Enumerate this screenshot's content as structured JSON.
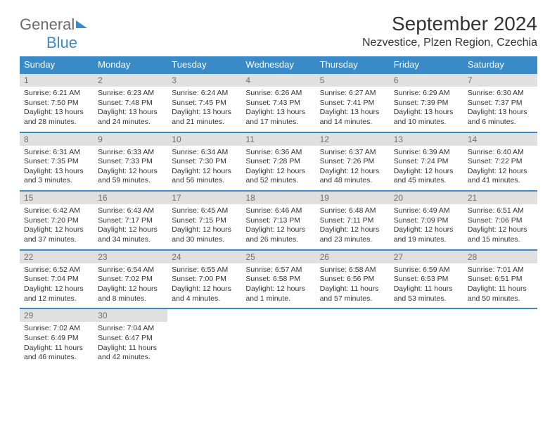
{
  "logo": {
    "part1": "General",
    "part2": "Blue"
  },
  "title": "September 2024",
  "location": "Nezvestice, Plzen Region, Czechia",
  "colors": {
    "accent": "#3a8ac8",
    "header_text": "#ffffff",
    "daynum_bg": "#e0e0e0",
    "daynum_text": "#707070",
    "body_text": "#333333",
    "logo_gray": "#6b6b6b"
  },
  "dow": [
    "Sunday",
    "Monday",
    "Tuesday",
    "Wednesday",
    "Thursday",
    "Friday",
    "Saturday"
  ],
  "weeks": [
    [
      {
        "n": "1",
        "sr": "Sunrise: 6:21 AM",
        "ss": "Sunset: 7:50 PM",
        "dl": "Daylight: 13 hours and 28 minutes."
      },
      {
        "n": "2",
        "sr": "Sunrise: 6:23 AM",
        "ss": "Sunset: 7:48 PM",
        "dl": "Daylight: 13 hours and 24 minutes."
      },
      {
        "n": "3",
        "sr": "Sunrise: 6:24 AM",
        "ss": "Sunset: 7:45 PM",
        "dl": "Daylight: 13 hours and 21 minutes."
      },
      {
        "n": "4",
        "sr": "Sunrise: 6:26 AM",
        "ss": "Sunset: 7:43 PM",
        "dl": "Daylight: 13 hours and 17 minutes."
      },
      {
        "n": "5",
        "sr": "Sunrise: 6:27 AM",
        "ss": "Sunset: 7:41 PM",
        "dl": "Daylight: 13 hours and 14 minutes."
      },
      {
        "n": "6",
        "sr": "Sunrise: 6:29 AM",
        "ss": "Sunset: 7:39 PM",
        "dl": "Daylight: 13 hours and 10 minutes."
      },
      {
        "n": "7",
        "sr": "Sunrise: 6:30 AM",
        "ss": "Sunset: 7:37 PM",
        "dl": "Daylight: 13 hours and 6 minutes."
      }
    ],
    [
      {
        "n": "8",
        "sr": "Sunrise: 6:31 AM",
        "ss": "Sunset: 7:35 PM",
        "dl": "Daylight: 13 hours and 3 minutes."
      },
      {
        "n": "9",
        "sr": "Sunrise: 6:33 AM",
        "ss": "Sunset: 7:33 PM",
        "dl": "Daylight: 12 hours and 59 minutes."
      },
      {
        "n": "10",
        "sr": "Sunrise: 6:34 AM",
        "ss": "Sunset: 7:30 PM",
        "dl": "Daylight: 12 hours and 56 minutes."
      },
      {
        "n": "11",
        "sr": "Sunrise: 6:36 AM",
        "ss": "Sunset: 7:28 PM",
        "dl": "Daylight: 12 hours and 52 minutes."
      },
      {
        "n": "12",
        "sr": "Sunrise: 6:37 AM",
        "ss": "Sunset: 7:26 PM",
        "dl": "Daylight: 12 hours and 48 minutes."
      },
      {
        "n": "13",
        "sr": "Sunrise: 6:39 AM",
        "ss": "Sunset: 7:24 PM",
        "dl": "Daylight: 12 hours and 45 minutes."
      },
      {
        "n": "14",
        "sr": "Sunrise: 6:40 AM",
        "ss": "Sunset: 7:22 PM",
        "dl": "Daylight: 12 hours and 41 minutes."
      }
    ],
    [
      {
        "n": "15",
        "sr": "Sunrise: 6:42 AM",
        "ss": "Sunset: 7:20 PM",
        "dl": "Daylight: 12 hours and 37 minutes."
      },
      {
        "n": "16",
        "sr": "Sunrise: 6:43 AM",
        "ss": "Sunset: 7:17 PM",
        "dl": "Daylight: 12 hours and 34 minutes."
      },
      {
        "n": "17",
        "sr": "Sunrise: 6:45 AM",
        "ss": "Sunset: 7:15 PM",
        "dl": "Daylight: 12 hours and 30 minutes."
      },
      {
        "n": "18",
        "sr": "Sunrise: 6:46 AM",
        "ss": "Sunset: 7:13 PM",
        "dl": "Daylight: 12 hours and 26 minutes."
      },
      {
        "n": "19",
        "sr": "Sunrise: 6:48 AM",
        "ss": "Sunset: 7:11 PM",
        "dl": "Daylight: 12 hours and 23 minutes."
      },
      {
        "n": "20",
        "sr": "Sunrise: 6:49 AM",
        "ss": "Sunset: 7:09 PM",
        "dl": "Daylight: 12 hours and 19 minutes."
      },
      {
        "n": "21",
        "sr": "Sunrise: 6:51 AM",
        "ss": "Sunset: 7:06 PM",
        "dl": "Daylight: 12 hours and 15 minutes."
      }
    ],
    [
      {
        "n": "22",
        "sr": "Sunrise: 6:52 AM",
        "ss": "Sunset: 7:04 PM",
        "dl": "Daylight: 12 hours and 12 minutes."
      },
      {
        "n": "23",
        "sr": "Sunrise: 6:54 AM",
        "ss": "Sunset: 7:02 PM",
        "dl": "Daylight: 12 hours and 8 minutes."
      },
      {
        "n": "24",
        "sr": "Sunrise: 6:55 AM",
        "ss": "Sunset: 7:00 PM",
        "dl": "Daylight: 12 hours and 4 minutes."
      },
      {
        "n": "25",
        "sr": "Sunrise: 6:57 AM",
        "ss": "Sunset: 6:58 PM",
        "dl": "Daylight: 12 hours and 1 minute."
      },
      {
        "n": "26",
        "sr": "Sunrise: 6:58 AM",
        "ss": "Sunset: 6:56 PM",
        "dl": "Daylight: 11 hours and 57 minutes."
      },
      {
        "n": "27",
        "sr": "Sunrise: 6:59 AM",
        "ss": "Sunset: 6:53 PM",
        "dl": "Daylight: 11 hours and 53 minutes."
      },
      {
        "n": "28",
        "sr": "Sunrise: 7:01 AM",
        "ss": "Sunset: 6:51 PM",
        "dl": "Daylight: 11 hours and 50 minutes."
      }
    ],
    [
      {
        "n": "29",
        "sr": "Sunrise: 7:02 AM",
        "ss": "Sunset: 6:49 PM",
        "dl": "Daylight: 11 hours and 46 minutes."
      },
      {
        "n": "30",
        "sr": "Sunrise: 7:04 AM",
        "ss": "Sunset: 6:47 PM",
        "dl": "Daylight: 11 hours and 42 minutes."
      },
      null,
      null,
      null,
      null,
      null
    ]
  ]
}
